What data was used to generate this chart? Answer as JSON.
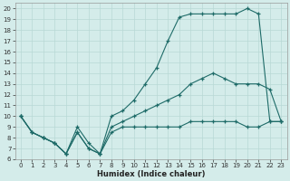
{
  "xlabel": "Humidex (Indice chaleur)",
  "bg_color": "#d4ecea",
  "line_color": "#1e6b68",
  "grid_color": "#b8d8d5",
  "xlim": [
    -0.5,
    23.5
  ],
  "ylim": [
    6,
    20.5
  ],
  "xticks": [
    0,
    1,
    2,
    3,
    4,
    5,
    6,
    7,
    8,
    9,
    10,
    11,
    12,
    13,
    14,
    15,
    16,
    17,
    18,
    19,
    20,
    21,
    22,
    23
  ],
  "yticks": [
    6,
    7,
    8,
    9,
    10,
    11,
    12,
    13,
    14,
    15,
    16,
    17,
    18,
    19,
    20
  ],
  "curve_arch": {
    "x": [
      0,
      1,
      2,
      3,
      4,
      5,
      6,
      7,
      8,
      9,
      10,
      11,
      12,
      13,
      14,
      15,
      16,
      17,
      18,
      19,
      20,
      21,
      22,
      23
    ],
    "y": [
      10,
      8.5,
      8,
      7.5,
      6.5,
      8.5,
      7,
      6.5,
      10,
      10.5,
      11.5,
      13,
      14.5,
      17,
      19.2,
      19.5,
      19.5,
      19.5,
      19.5,
      19.5,
      20,
      19.5,
      9.5,
      9.5
    ]
  },
  "curve_diag": {
    "x": [
      0,
      1,
      2,
      3,
      4,
      5,
      6,
      7,
      8,
      9,
      10,
      11,
      12,
      13,
      14,
      15,
      16,
      17,
      18,
      19,
      20,
      21,
      22,
      23
    ],
    "y": [
      10,
      8.5,
      8,
      7.5,
      6.5,
      8.5,
      7,
      6.5,
      9,
      9.5,
      10,
      10.5,
      11,
      11.5,
      12,
      13,
      13.5,
      14,
      13.5,
      13,
      13,
      13,
      12.5,
      9.5
    ]
  },
  "curve_flat": {
    "x": [
      0,
      1,
      2,
      3,
      4,
      5,
      6,
      7,
      8,
      9,
      10,
      11,
      12,
      13,
      14,
      15,
      16,
      17,
      18,
      19,
      20,
      21,
      22,
      23
    ],
    "y": [
      10,
      8.5,
      8,
      7.5,
      6.5,
      9,
      7.5,
      6.5,
      8.5,
      9,
      9,
      9,
      9,
      9,
      9,
      9.5,
      9.5,
      9.5,
      9.5,
      9.5,
      9,
      9,
      9.5,
      9.5
    ]
  }
}
